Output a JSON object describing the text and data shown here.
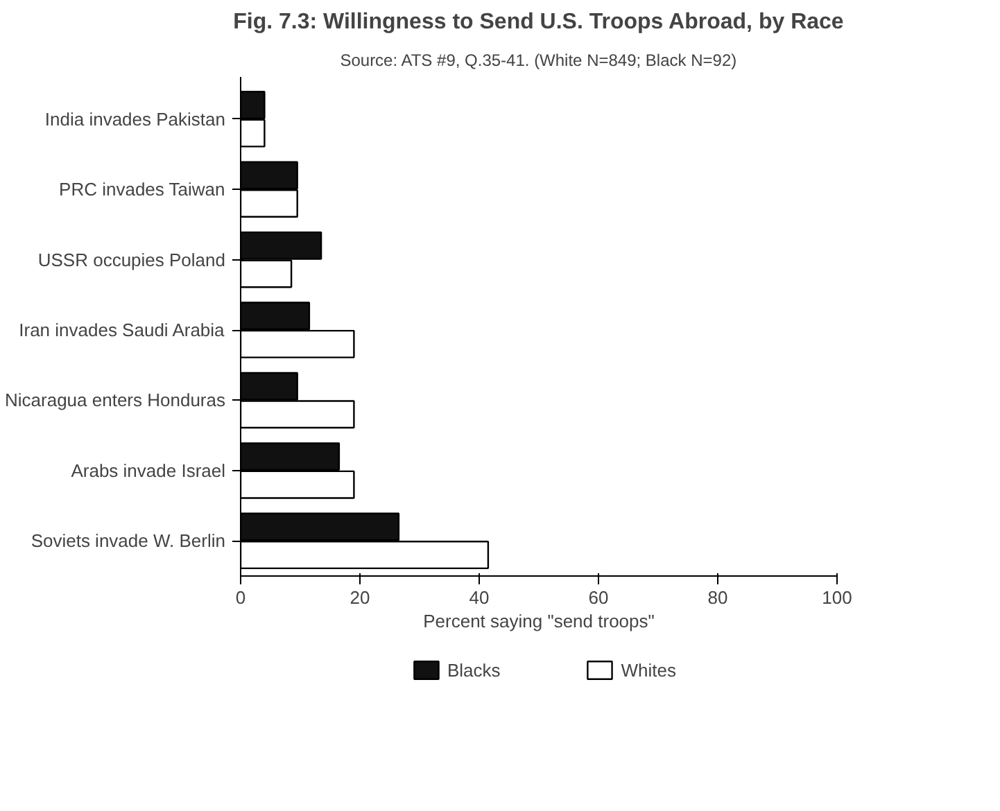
{
  "chart_data": {
    "type": "bar",
    "orientation": "horizontal",
    "title": "Fig. 7.3: Willingness to Send U.S. Troops Abroad, by Race",
    "subtitle": "Source: ATS #9, Q.35-41. (White N=849; Black N=92)",
    "xlabel": "Percent saying \"send troops\"",
    "categories": [
      "India invades Pakistan",
      "PRC invades Taiwan",
      "USSR occupies Poland",
      "Iran invades Saudi Arabia",
      "Nicaragua enters Honduras",
      "Arabs invade Israel",
      "Soviets invade W. Berlin"
    ],
    "series": [
      {
        "name": "Blacks",
        "color": "#111111",
        "values": [
          4,
          9.5,
          13.5,
          11.5,
          9.5,
          16.5,
          26.5
        ]
      },
      {
        "name": "Whites",
        "color": "#ffffff",
        "values": [
          4,
          9.5,
          8.5,
          19,
          19,
          19,
          41.5
        ]
      }
    ],
    "xlim": [
      0,
      100
    ],
    "xticks": [
      0,
      20,
      40,
      60,
      80,
      100
    ],
    "grid": false,
    "legend": "bottom"
  }
}
